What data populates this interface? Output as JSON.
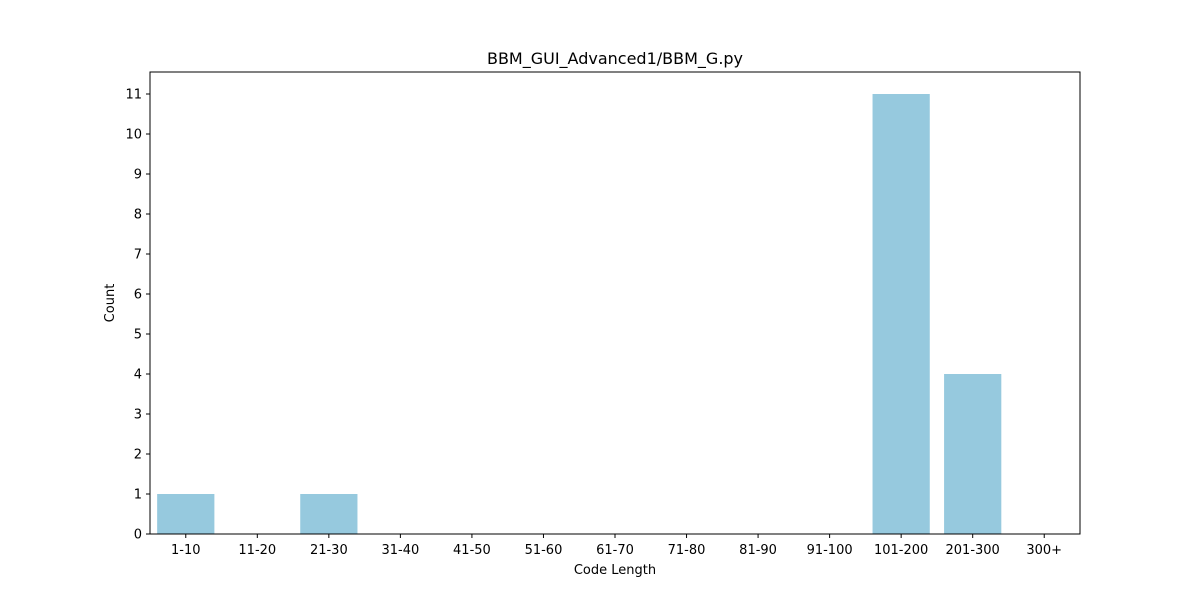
{
  "chart_data": {
    "type": "bar",
    "title": "BBM_GUI_Advanced1/BBM_G.py",
    "xlabel": "Code Length",
    "ylabel": "Count",
    "categories": [
      "1-10",
      "11-20",
      "21-30",
      "31-40",
      "41-50",
      "51-60",
      "61-70",
      "71-80",
      "81-90",
      "91-100",
      "101-200",
      "201-300",
      "300+"
    ],
    "values": [
      1,
      0,
      1,
      0,
      0,
      0,
      0,
      0,
      0,
      0,
      11,
      4,
      0
    ],
    "ylim": [
      0,
      11.55
    ],
    "yticks": [
      0,
      1,
      2,
      3,
      4,
      5,
      6,
      7,
      8,
      9,
      10,
      11
    ],
    "bar_color": "#96c9de",
    "grid": false,
    "legend": "none"
  }
}
